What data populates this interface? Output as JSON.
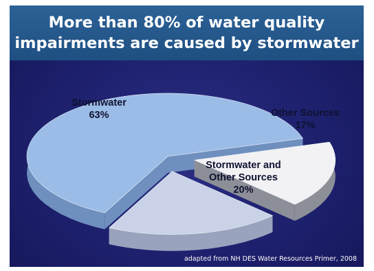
{
  "title": "More than 80% of water quality\nimpairments are caused by stormwater",
  "credit": "adapted from NH DES Water Resources Primer, 2008",
  "colors": {
    "background": "#1b1e6b",
    "title_bar": "#235a8e",
    "stormwater": "#9bbce6",
    "other_sources": "#f2f2f4",
    "both": "#c9d2e6"
  },
  "chart_data": {
    "type": "pie",
    "style": "3d exploded",
    "title": "More than 80% of water quality impairments are caused by stormwater",
    "slices": [
      {
        "label": "Stormwater",
        "value": 63,
        "value_label": "63%"
      },
      {
        "label": "Other Sources",
        "value": 17,
        "value_label": "17%"
      },
      {
        "label": "Stormwater and Other Sources",
        "value": 20,
        "value_label": "20%"
      }
    ]
  }
}
